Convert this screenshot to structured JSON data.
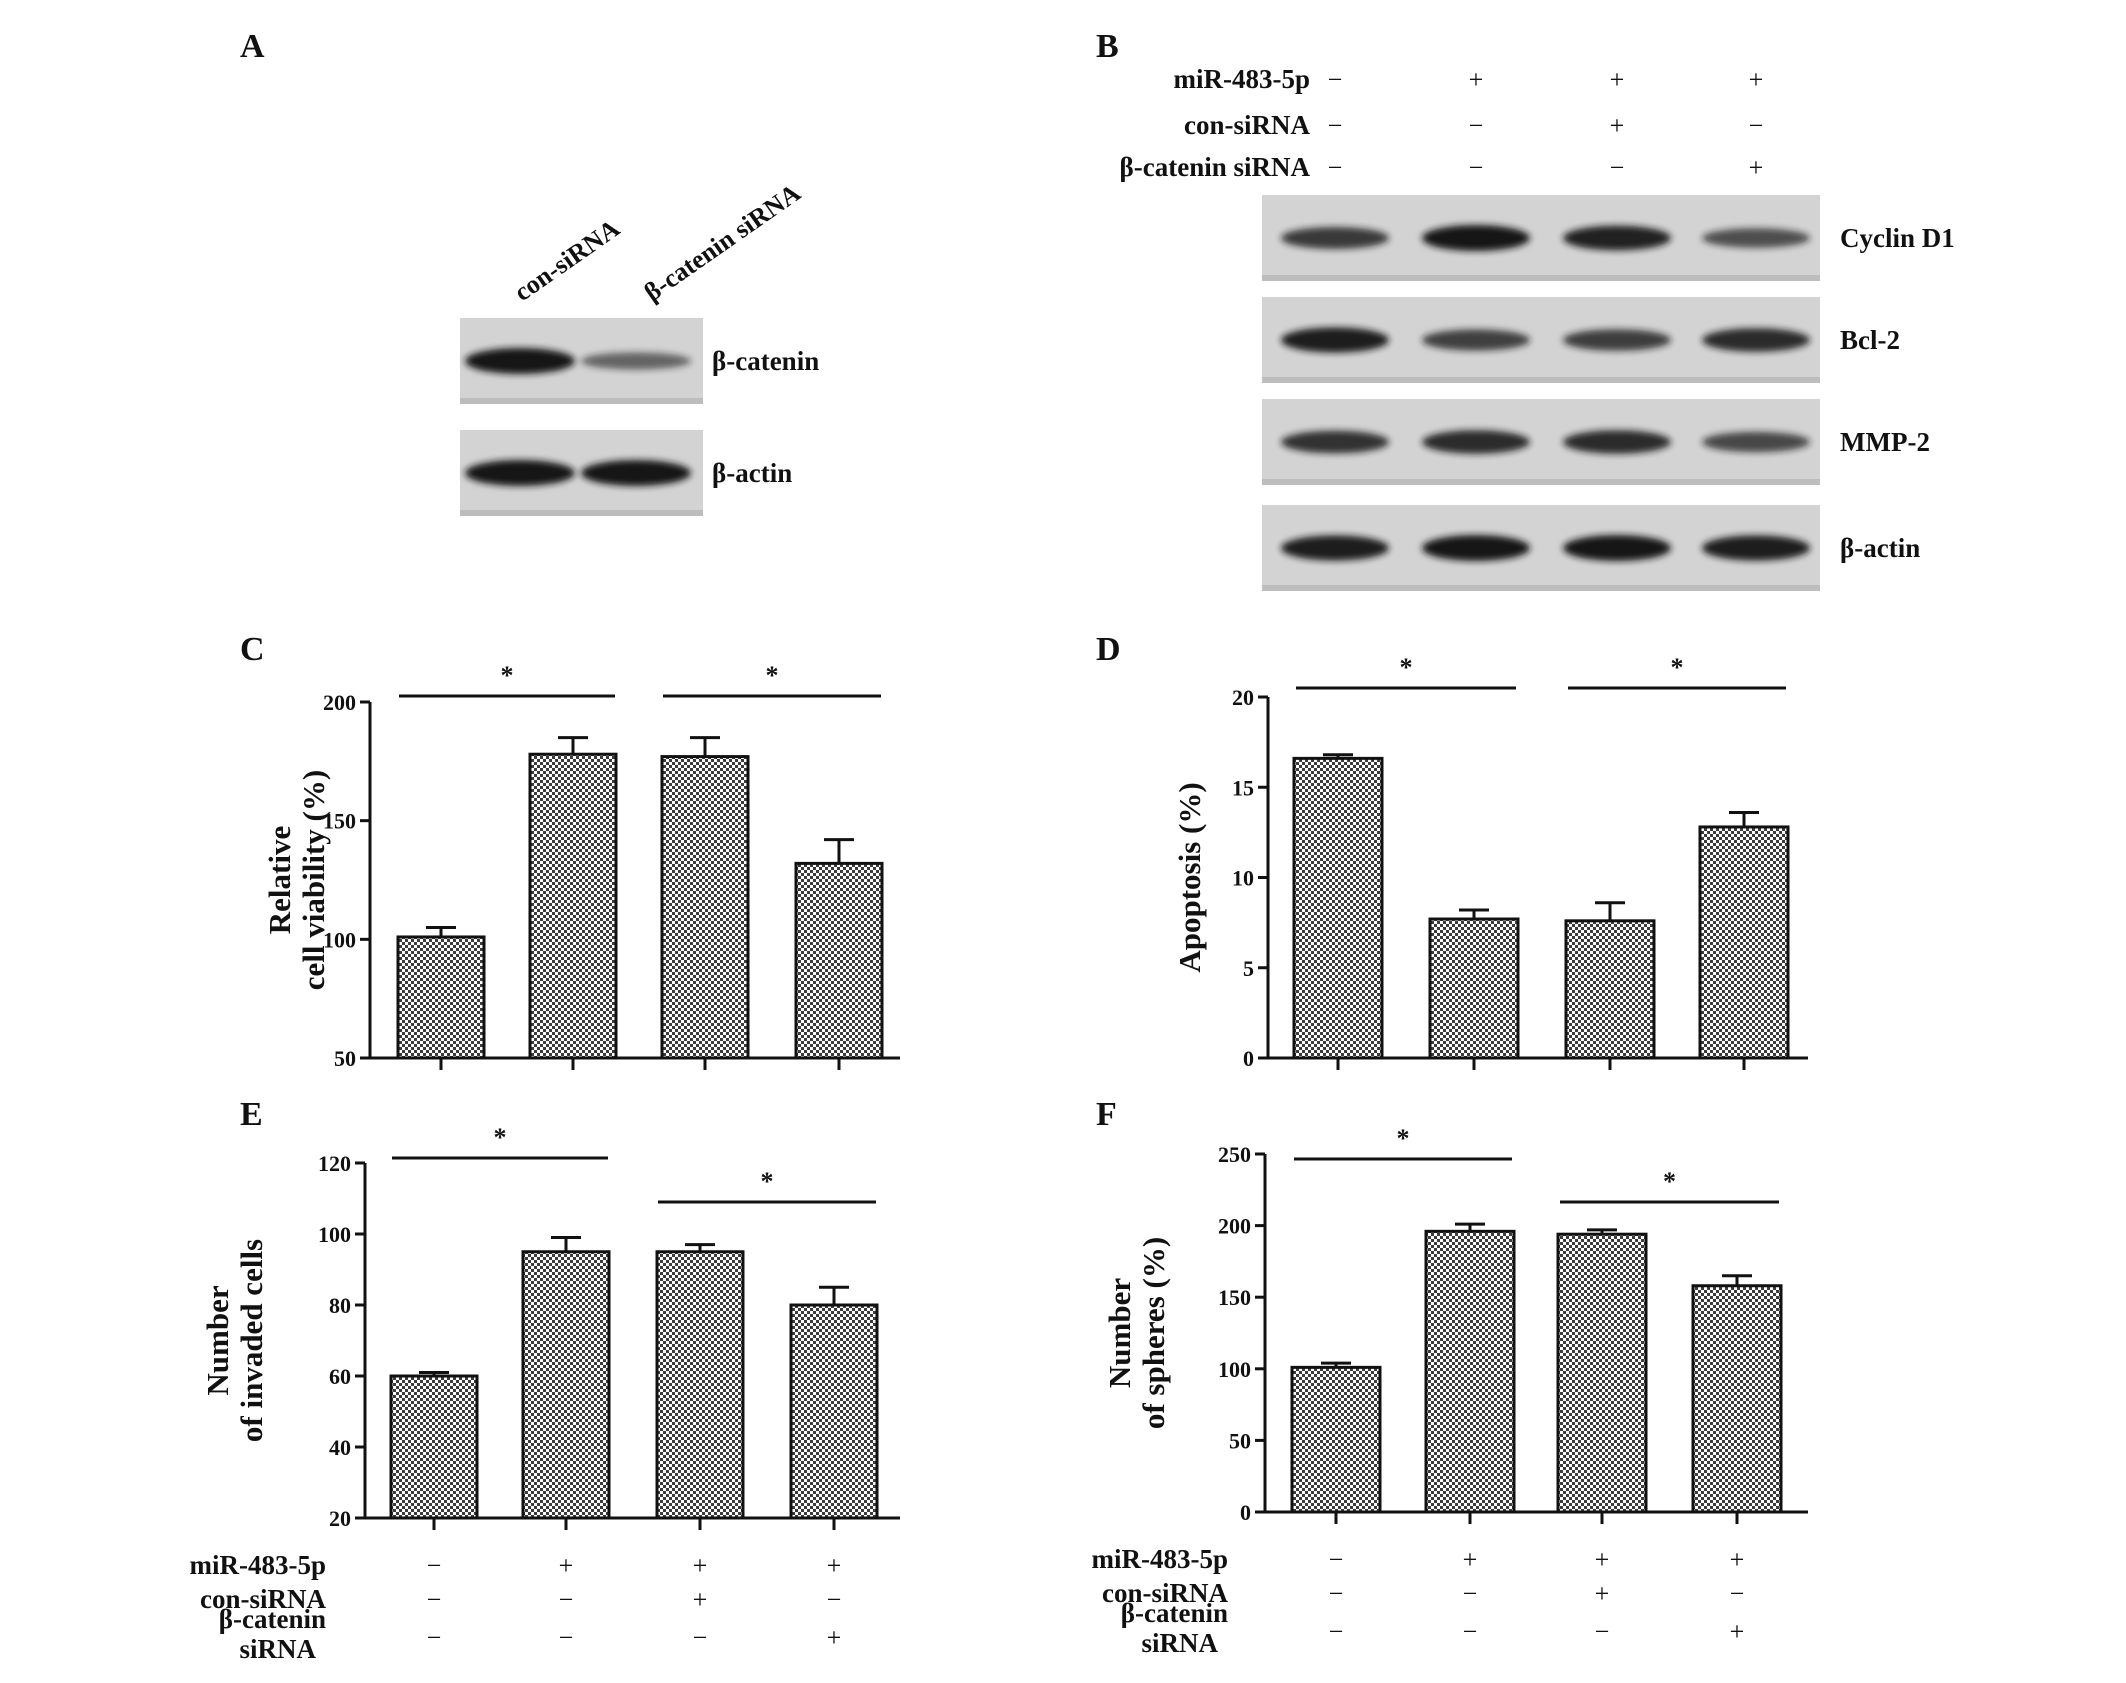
{
  "panels": {
    "A": {
      "letter": "A",
      "lanes": [
        "con-siRNA",
        "β-catenin siRNA"
      ],
      "blots": [
        {
          "label": "β-catenin",
          "intensity": [
            1.0,
            0.45
          ]
        },
        {
          "label": "β-actin",
          "intensity": [
            1.0,
            1.0
          ]
        }
      ]
    },
    "B": {
      "letter": "B",
      "conditions": [
        {
          "label": "miR-483-5p",
          "signs": [
            "−",
            "+",
            "+",
            "+"
          ]
        },
        {
          "label": "con-siRNA",
          "signs": [
            "−",
            "−",
            "+",
            "−"
          ]
        },
        {
          "label": "β-catenin siRNA",
          "signs": [
            "−",
            "−",
            "−",
            "+"
          ]
        }
      ],
      "blots": [
        {
          "label": "Cyclin D1",
          "intensity": [
            0.75,
            1.0,
            0.92,
            0.6
          ]
        },
        {
          "label": "Bcl-2",
          "intensity": [
            0.95,
            0.7,
            0.72,
            0.85
          ]
        },
        {
          "label": "MMP-2",
          "intensity": [
            0.8,
            0.85,
            0.85,
            0.65
          ]
        },
        {
          "label": "β-actin",
          "intensity": [
            0.95,
            1.0,
            1.0,
            0.95
          ]
        }
      ]
    }
  },
  "chart_data": [
    {
      "letter": "C",
      "type": "bar",
      "ylabel_lines": [
        "Relative",
        "cell viability (%)"
      ],
      "ylim": [
        50,
        200
      ],
      "yticks": [
        50,
        100,
        150,
        200
      ],
      "values": [
        101,
        178,
        177,
        132
      ],
      "errors": [
        4,
        7,
        8,
        10
      ],
      "significance": [
        {
          "between": [
            0,
            1
          ],
          "label": "*"
        },
        {
          "between": [
            2,
            3
          ],
          "label": "*"
        }
      ]
    },
    {
      "letter": "D",
      "type": "bar",
      "ylabel_lines": [
        "Apoptosis (%)"
      ],
      "ylim": [
        0,
        20
      ],
      "yticks": [
        0,
        5,
        10,
        15,
        20
      ],
      "values": [
        16.6,
        7.7,
        7.6,
        12.8
      ],
      "errors": [
        0.2,
        0.5,
        1.0,
        0.8
      ],
      "significance": [
        {
          "between": [
            0,
            1
          ],
          "label": "*"
        },
        {
          "between": [
            2,
            3
          ],
          "label": "*"
        }
      ]
    },
    {
      "letter": "E",
      "type": "bar",
      "ylabel_lines": [
        "Number",
        "of invaded cells"
      ],
      "ylim": [
        20,
        120
      ],
      "yticks": [
        20,
        40,
        60,
        80,
        100,
        120
      ],
      "values": [
        60,
        95,
        95,
        80
      ],
      "errors": [
        1,
        4,
        2,
        5
      ],
      "significance": [
        {
          "between": [
            0,
            1
          ],
          "label": "*"
        },
        {
          "between": [
            2,
            3
          ],
          "label": "*"
        }
      ],
      "conditions": [
        {
          "label_lines": [
            "miR-483-5p"
          ],
          "signs": [
            "−",
            "+",
            "+",
            "+"
          ]
        },
        {
          "label_lines": [
            "con-siRNA"
          ],
          "signs": [
            "−",
            "−",
            "+",
            "−"
          ]
        },
        {
          "label_lines": [
            "β-catenin",
            "siRNA"
          ],
          "signs": [
            "−",
            "−",
            "−",
            "+"
          ]
        }
      ]
    },
    {
      "letter": "F",
      "type": "bar",
      "ylabel_lines": [
        "Number",
        "of spheres (%)"
      ],
      "ylim": [
        0,
        250
      ],
      "yticks": [
        0,
        50,
        100,
        150,
        200,
        250
      ],
      "values": [
        101,
        196,
        194,
        158
      ],
      "errors": [
        3,
        5,
        3,
        7
      ],
      "significance": [
        {
          "between": [
            0,
            1
          ],
          "label": "*"
        },
        {
          "between": [
            2,
            3
          ],
          "label": "*"
        }
      ],
      "conditions": [
        {
          "label_lines": [
            "miR-483-5p"
          ],
          "signs": [
            "−",
            "+",
            "+",
            "+"
          ]
        },
        {
          "label_lines": [
            "con-siRNA"
          ],
          "signs": [
            "−",
            "−",
            "+",
            "−"
          ]
        },
        {
          "label_lines": [
            "β-catenin",
            "siRNA"
          ],
          "signs": [
            "−",
            "−",
            "−",
            "+"
          ]
        }
      ]
    }
  ]
}
